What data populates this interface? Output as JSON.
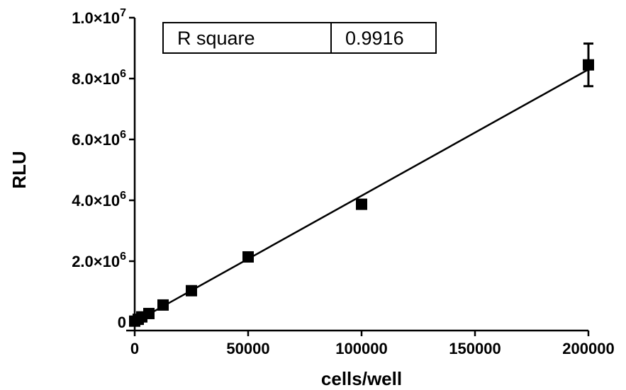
{
  "chart_data": {
    "type": "scatter",
    "xlabel": "cells/well",
    "ylabel": "RLU",
    "xlim": [
      0,
      200000
    ],
    "ylim": [
      0,
      10000000
    ],
    "x_ticks": [
      {
        "value": 0,
        "label": "0"
      },
      {
        "value": 50000,
        "label": "50000"
      },
      {
        "value": 100000,
        "label": "100000"
      },
      {
        "value": 150000,
        "label": "150000"
      },
      {
        "value": 200000,
        "label": "200000"
      }
    ],
    "y_ticks": [
      {
        "value": 0,
        "mantissa": "0",
        "exponent": ""
      },
      {
        "value": 2000000,
        "mantissa": "2.0×10",
        "exponent": "6"
      },
      {
        "value": 4000000,
        "mantissa": "4.0×10",
        "exponent": "6"
      },
      {
        "value": 6000000,
        "mantissa": "6.0×10",
        "exponent": "6"
      },
      {
        "value": 8000000,
        "mantissa": "8.0×10",
        "exponent": "6"
      },
      {
        "value": 10000000,
        "mantissa": "1.0×10",
        "exponent": "7"
      }
    ],
    "series": [
      {
        "x": [
          0,
          1563,
          3125,
          6250,
          12500,
          25000,
          50000,
          100000,
          200000
        ],
        "y": [
          30000,
          90000,
          170000,
          280000,
          560000,
          1030000,
          2140000,
          3870000,
          8450000
        ],
        "y_error": [
          0,
          0,
          0,
          0,
          0,
          0,
          0,
          0,
          700000
        ]
      }
    ],
    "fit_line": {
      "x": [
        0,
        200000
      ],
      "y": [
        0,
        8300000
      ]
    },
    "legend": {
      "position": "top-left",
      "label": "R square",
      "value": "0.9916"
    },
    "grid": false,
    "colors": {
      "marker": "#000000",
      "line": "#000000"
    }
  }
}
